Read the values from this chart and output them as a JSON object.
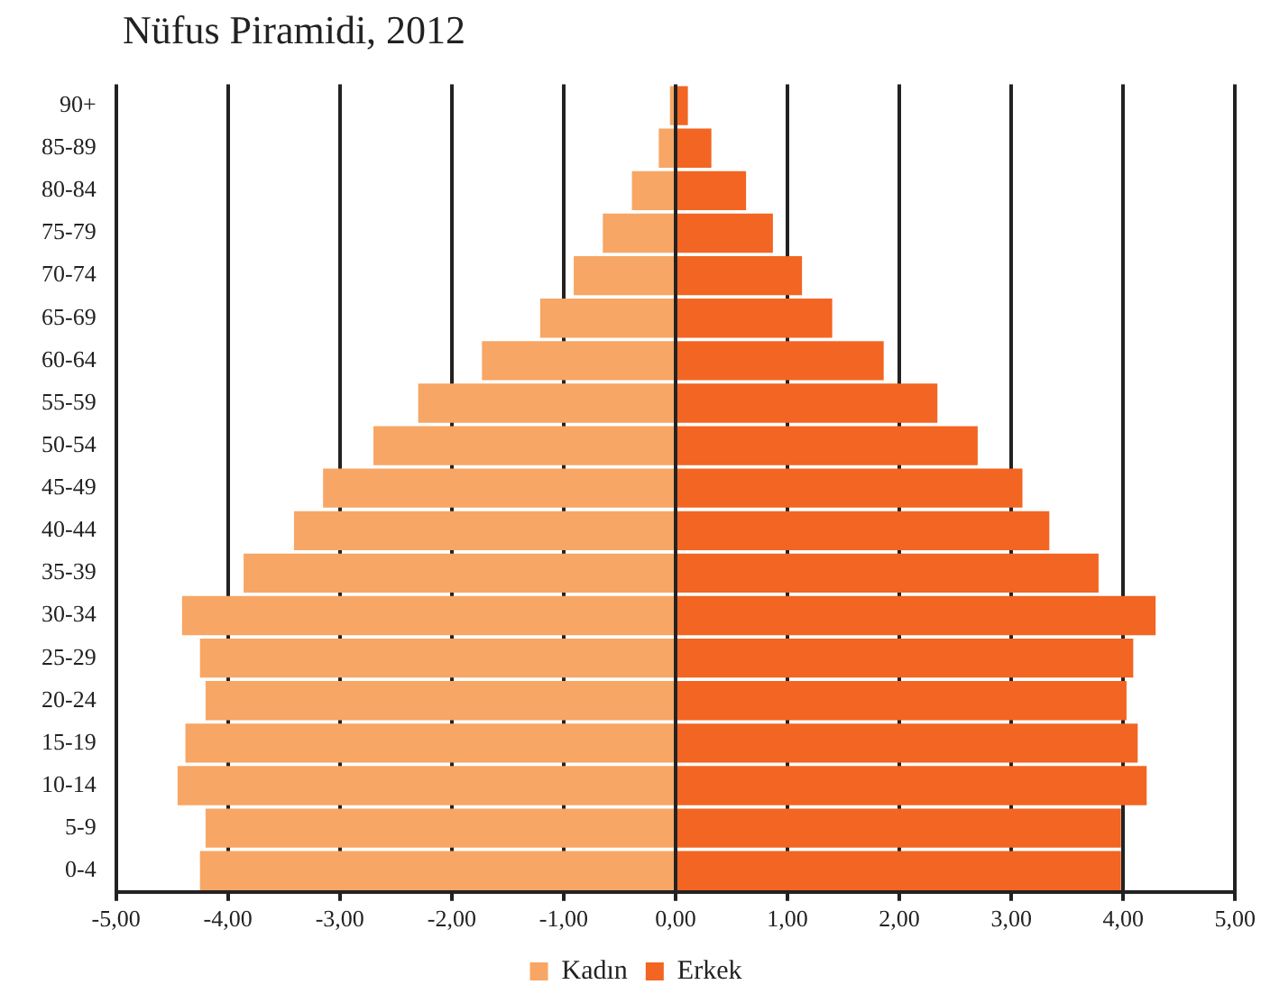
{
  "chart_data": {
    "type": "bar",
    "title": "Nüfus Piramidi, 2012",
    "orientation": "horizontal",
    "stacked": true,
    "categories": [
      "90+",
      "85-89",
      "80-84",
      "75-79",
      "70-74",
      "65-69",
      "60-64",
      "55-59",
      "50-54",
      "45-49",
      "40-44",
      "35-39",
      "30-34",
      "25-29",
      "20-24",
      "15-19",
      "10-14",
      "5-9",
      "0-4"
    ],
    "series": [
      {
        "name": "Kadın",
        "color": "#f7a665",
        "values": [
          -0.05,
          -0.15,
          -0.39,
          -0.65,
          -0.91,
          -1.21,
          -1.73,
          -2.3,
          -2.7,
          -3.15,
          -3.41,
          -3.86,
          -4.41,
          -4.25,
          -4.2,
          -4.38,
          -4.45,
          -4.2,
          -4.25
        ]
      },
      {
        "name": "Erkek",
        "color": "#f26522",
        "values": [
          0.11,
          0.32,
          0.63,
          0.87,
          1.13,
          1.4,
          1.86,
          2.34,
          2.7,
          3.1,
          3.34,
          3.78,
          4.29,
          4.09,
          4.03,
          4.13,
          4.21,
          3.98,
          3.98
        ]
      }
    ],
    "xlim": [
      -5,
      5
    ],
    "xticks": [
      {
        "value": -5,
        "label": "-5,00"
      },
      {
        "value": -4,
        "label": "-4,00"
      },
      {
        "value": -3,
        "label": "-3,00"
      },
      {
        "value": -2,
        "label": "-2,00"
      },
      {
        "value": -1,
        "label": "-1,00"
      },
      {
        "value": 0,
        "label": "0,00"
      },
      {
        "value": 1,
        "label": "1,00"
      },
      {
        "value": 2,
        "label": "2,00"
      },
      {
        "value": 3,
        "label": "3,00"
      },
      {
        "value": 4,
        "label": "4,00"
      },
      {
        "value": 5,
        "label": "5,00"
      }
    ],
    "grid": "x",
    "legend": "bottom"
  }
}
